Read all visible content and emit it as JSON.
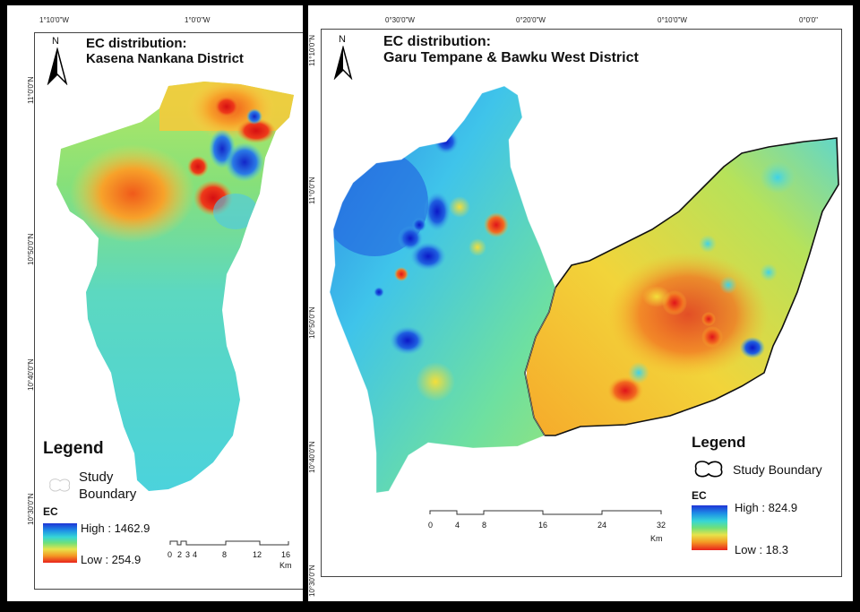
{
  "left_map": {
    "title_line1": "EC distribution:",
    "title_line2": "Kasena Nankana District",
    "north": "N",
    "top_coords": [
      "1°10'0\"W",
      "1°0'0\"W"
    ],
    "side_coords": [
      "11°0'0\"N",
      "10°50'0\"N",
      "10°40'0\"N",
      "10°30'0\"N"
    ],
    "legend": {
      "title": "Legend",
      "boundary_line1": "Study",
      "boundary_line2": "Boundary",
      "ec_label": "EC",
      "high": "High : 1462.9",
      "low": "Low : 254.9"
    },
    "scale": {
      "ticks": [
        "0",
        "2",
        "3",
        "4",
        "8",
        "12",
        "16"
      ],
      "unit": "Km"
    }
  },
  "right_map": {
    "title_line1": "EC distribution:",
    "title_line2": "Garu Tempane & Bawku West District",
    "north": "N",
    "top_coords": [
      "0°30'0\"W",
      "0°20'0\"W",
      "0°10'0\"W",
      "0°0'0\""
    ],
    "side_coords": [
      "11°10'0\"N",
      "11°0'0\"N",
      "10°50'0\"N",
      "10°40'0\"N",
      "10°30'0\"N"
    ],
    "legend": {
      "title": "Legend",
      "boundary": "Study Boundary",
      "ec_label": "EC",
      "high": "High : 824.9",
      "low": "Low : 18.3"
    },
    "scale": {
      "ticks": [
        "0",
        "4",
        "8",
        "16",
        "24",
        "32"
      ],
      "unit": "Km"
    }
  },
  "colors": {
    "high": "#1f34d6",
    "mid_high": "#36d6d6",
    "mid": "#6fe07a",
    "mid_low": "#e8e34a",
    "low": "#e9221c"
  }
}
